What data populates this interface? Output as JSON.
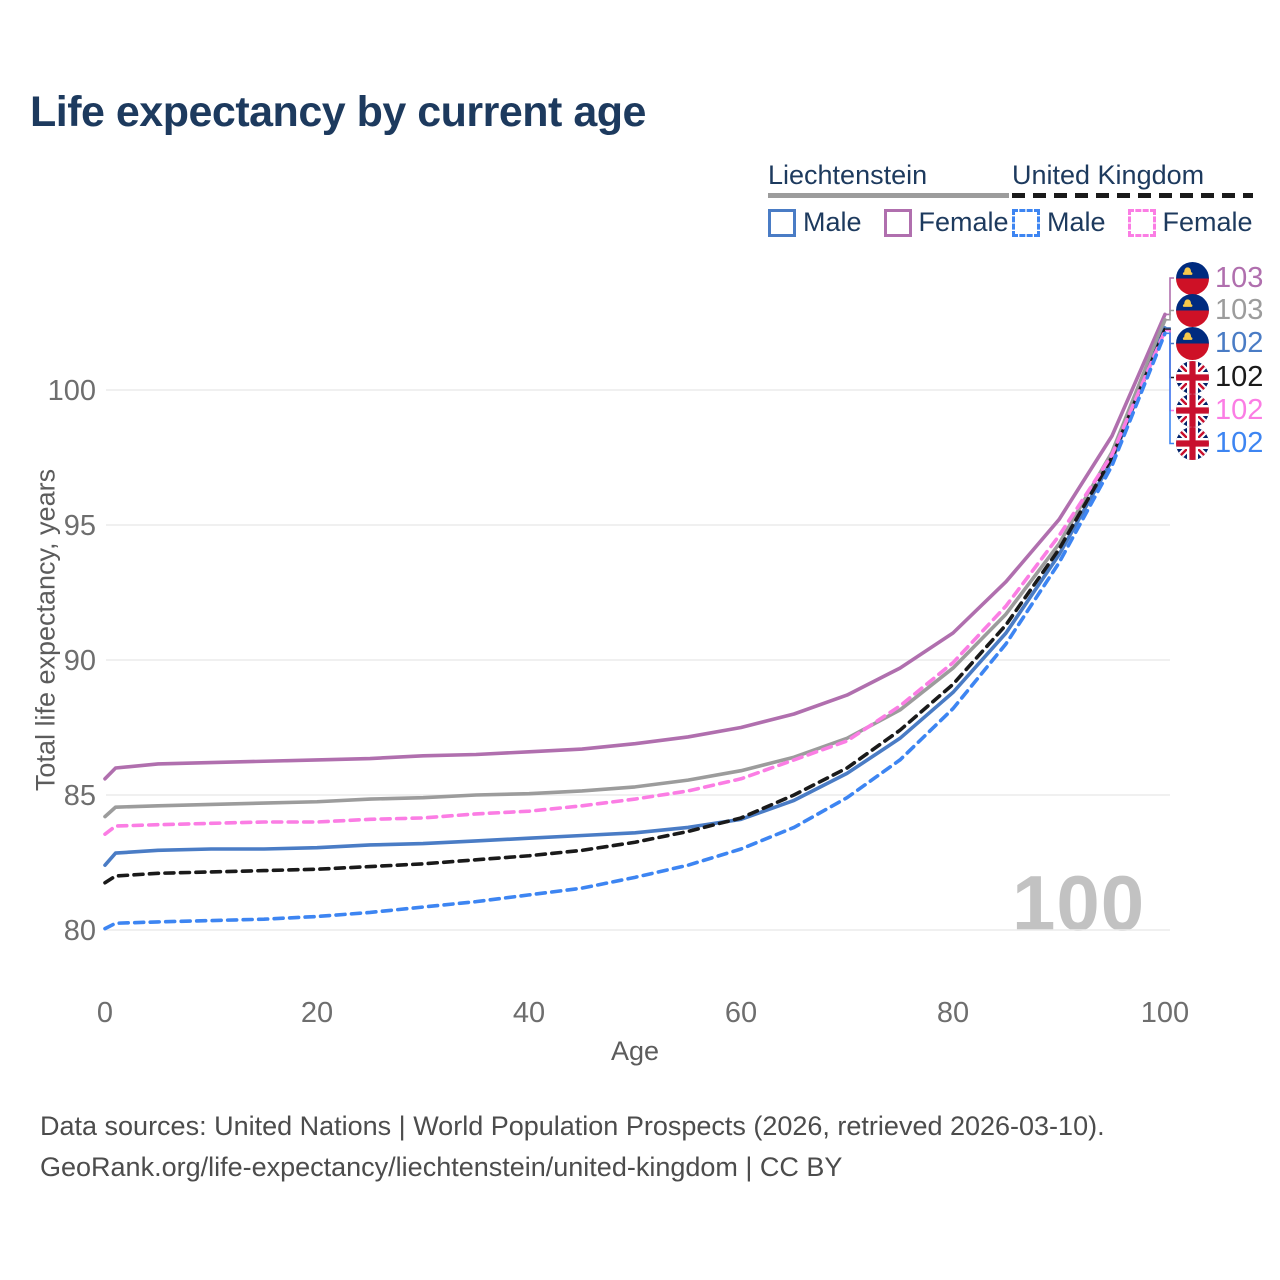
{
  "title": "Life expectancy by current age",
  "legend": {
    "groups": [
      {
        "name": "Liechtenstein",
        "underline_style": "solid",
        "underline_color": "#9c9c9c",
        "items": [
          {
            "label": "Male",
            "color": "#4a7cc5",
            "dash": "solid"
          },
          {
            "label": "Female",
            "color": "#b06fae",
            "dash": "solid"
          }
        ]
      },
      {
        "name": "United Kingdom",
        "underline_style": "dashed",
        "underline_color": "#1a1a1a",
        "items": [
          {
            "label": "Male",
            "color": "#3d85f2",
            "dash": "dashed"
          },
          {
            "label": "Female",
            "color": "#fb7de4",
            "dash": "dashed"
          }
        ]
      }
    ]
  },
  "chart_data": {
    "type": "line",
    "title": "Life expectancy by current age",
    "xlabel": "Age",
    "ylabel": "Total life expectancy, years",
    "xticks": [
      0,
      20,
      40,
      60,
      80,
      100
    ],
    "yticks": [
      80,
      85,
      90,
      95,
      100
    ],
    "xlim": [
      0,
      100
    ],
    "ylim": [
      80,
      100
    ],
    "grid": "horizontal",
    "x": [
      0,
      1,
      5,
      10,
      15,
      20,
      25,
      30,
      35,
      40,
      45,
      50,
      55,
      60,
      65,
      70,
      75,
      80,
      85,
      90,
      95,
      100
    ],
    "series": [
      {
        "name": "Liechtenstein Female",
        "country": "Liechtenstein",
        "sex": "Female",
        "color": "#b06fae",
        "dash": "solid",
        "values": [
          85.6,
          86.0,
          86.15,
          86.2,
          86.25,
          86.3,
          86.35,
          86.45,
          86.5,
          86.6,
          86.7,
          86.9,
          87.15,
          87.5,
          88.0,
          88.7,
          89.7,
          91.0,
          92.9,
          95.2,
          98.3,
          102.8
        ]
      },
      {
        "name": "Liechtenstein Both sexes",
        "country": "Liechtenstein",
        "sex": "Both",
        "color": "#9c9c9c",
        "dash": "solid",
        "values": [
          84.2,
          84.55,
          84.6,
          84.65,
          84.7,
          84.75,
          84.85,
          84.9,
          85.0,
          85.05,
          85.15,
          85.3,
          85.55,
          85.9,
          86.4,
          87.1,
          88.15,
          89.7,
          91.7,
          94.3,
          97.7,
          102.6
        ]
      },
      {
        "name": "Liechtenstein Male",
        "country": "Liechtenstein",
        "sex": "Male",
        "color": "#4a7cc5",
        "dash": "solid",
        "values": [
          82.4,
          82.85,
          82.95,
          83.0,
          83.0,
          83.05,
          83.15,
          83.2,
          83.3,
          83.4,
          83.5,
          83.6,
          83.8,
          84.1,
          84.8,
          85.8,
          87.1,
          88.8,
          91.0,
          93.9,
          97.4,
          102.3
        ]
      },
      {
        "name": "United Kingdom Both sexes",
        "country": "United Kingdom",
        "sex": "Both",
        "color": "#1a1a1a",
        "dash": "dashed",
        "values": [
          81.75,
          82.0,
          82.1,
          82.15,
          82.2,
          82.25,
          82.35,
          82.45,
          82.6,
          82.75,
          82.95,
          83.25,
          83.65,
          84.15,
          85.0,
          86.0,
          87.4,
          89.1,
          91.3,
          94.1,
          97.5,
          102.25
        ]
      },
      {
        "name": "United Kingdom Female",
        "country": "United Kingdom",
        "sex": "Female",
        "color": "#fb7de4",
        "dash": "dashed",
        "values": [
          83.55,
          83.85,
          83.9,
          83.95,
          84.0,
          84.0,
          84.1,
          84.15,
          84.3,
          84.4,
          84.6,
          84.85,
          85.15,
          85.6,
          86.3,
          87.0,
          88.3,
          89.9,
          92.0,
          94.6,
          97.6,
          102.2
        ]
      },
      {
        "name": "United Kingdom Male",
        "country": "United Kingdom",
        "sex": "Male",
        "color": "#3d85f2",
        "dash": "dashed",
        "values": [
          80.05,
          80.25,
          80.3,
          80.35,
          80.4,
          80.5,
          80.65,
          80.85,
          81.05,
          81.3,
          81.55,
          81.95,
          82.4,
          83.0,
          83.8,
          84.9,
          86.3,
          88.2,
          90.6,
          93.6,
          97.2,
          102.1
        ]
      }
    ]
  },
  "end_labels": [
    {
      "value": "103",
      "flag": "liechtenstein",
      "color": "#b06fae"
    },
    {
      "value": "103",
      "flag": "liechtenstein",
      "color": "#9c9c9c"
    },
    {
      "value": "102",
      "flag": "liechtenstein",
      "color": "#4a7cc5"
    },
    {
      "value": "102",
      "flag": "united-kingdom",
      "color": "#1a1a1a"
    },
    {
      "value": "102",
      "flag": "united-kingdom",
      "color": "#fb7de4"
    },
    {
      "value": "102",
      "flag": "united-kingdom",
      "color": "#3d85f2"
    }
  ],
  "watermark": "100",
  "footer": {
    "line1": "Data sources: United Nations | World Population Prospects (2026, retrieved 2026-03-10).",
    "line2": "GeoRank.org/life-expectancy/liechtenstein/united-kingdom | CC BY"
  },
  "colors": {
    "title_text": "#1d3a5e",
    "tick_text": "#6e6e6e",
    "gridline": "#ececec",
    "footer_text": "#4c4c4c",
    "watermark_text": "#c2c2c2"
  }
}
